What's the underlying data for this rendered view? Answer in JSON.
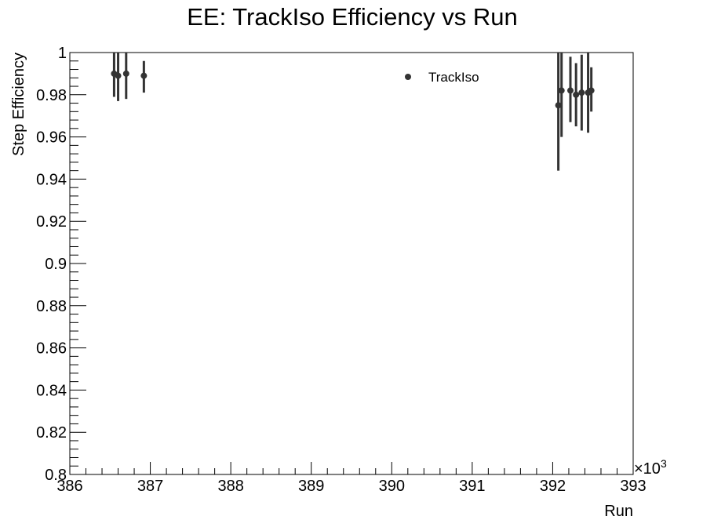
{
  "chart_data": {
    "type": "scatter",
    "title": "EE: TrackIso Efficiency vs Run",
    "xlabel": "Run",
    "ylabel": "Step Efficiency",
    "x_multiplier_label": "×10",
    "x_multiplier_exp": "3",
    "xlim": [
      386,
      393
    ],
    "ylim": [
      0.8,
      1.0
    ],
    "x_ticks": [
      {
        "v": 386,
        "label": "386"
      },
      {
        "v": 387,
        "label": "387"
      },
      {
        "v": 388,
        "label": "388"
      },
      {
        "v": 389,
        "label": "389"
      },
      {
        "v": 390,
        "label": "390"
      },
      {
        "v": 391,
        "label": "391"
      },
      {
        "v": 392,
        "label": "392"
      },
      {
        "v": 393,
        "label": "393"
      }
    ],
    "y_ticks": [
      {
        "v": 0.8,
        "label": "0.8"
      },
      {
        "v": 0.82,
        "label": "0.82"
      },
      {
        "v": 0.84,
        "label": "0.84"
      },
      {
        "v": 0.86,
        "label": "0.86"
      },
      {
        "v": 0.88,
        "label": "0.88"
      },
      {
        "v": 0.9,
        "label": "0.9"
      },
      {
        "v": 0.92,
        "label": "0.92"
      },
      {
        "v": 0.94,
        "label": "0.94"
      },
      {
        "v": 0.96,
        "label": "0.96"
      },
      {
        "v": 0.98,
        "label": "0.98"
      },
      {
        "v": 1.0,
        "label": "1"
      }
    ],
    "grid": false,
    "legend_position": "top-right",
    "series": [
      {
        "name": "TrackIso",
        "color": "#333333",
        "points": [
          {
            "x": 386.55,
            "y": 0.99,
            "ylo": 0.979,
            "yhi": 1.0
          },
          {
            "x": 386.6,
            "y": 0.989,
            "ylo": 0.977,
            "yhi": 1.0
          },
          {
            "x": 386.7,
            "y": 0.99,
            "ylo": 0.978,
            "yhi": 1.0
          },
          {
            "x": 386.92,
            "y": 0.989,
            "ylo": 0.981,
            "yhi": 0.996
          },
          {
            "x": 392.07,
            "y": 0.975,
            "ylo": 0.944,
            "yhi": 1.0
          },
          {
            "x": 392.11,
            "y": 0.982,
            "ylo": 0.96,
            "yhi": 1.0
          },
          {
            "x": 392.22,
            "y": 0.982,
            "ylo": 0.967,
            "yhi": 0.998
          },
          {
            "x": 392.29,
            "y": 0.98,
            "ylo": 0.965,
            "yhi": 0.995
          },
          {
            "x": 392.36,
            "y": 0.981,
            "ylo": 0.963,
            "yhi": 0.999
          },
          {
            "x": 392.44,
            "y": 0.981,
            "ylo": 0.962,
            "yhi": 1.0
          },
          {
            "x": 392.48,
            "y": 0.982,
            "ylo": 0.972,
            "yhi": 0.993
          }
        ]
      }
    ]
  }
}
